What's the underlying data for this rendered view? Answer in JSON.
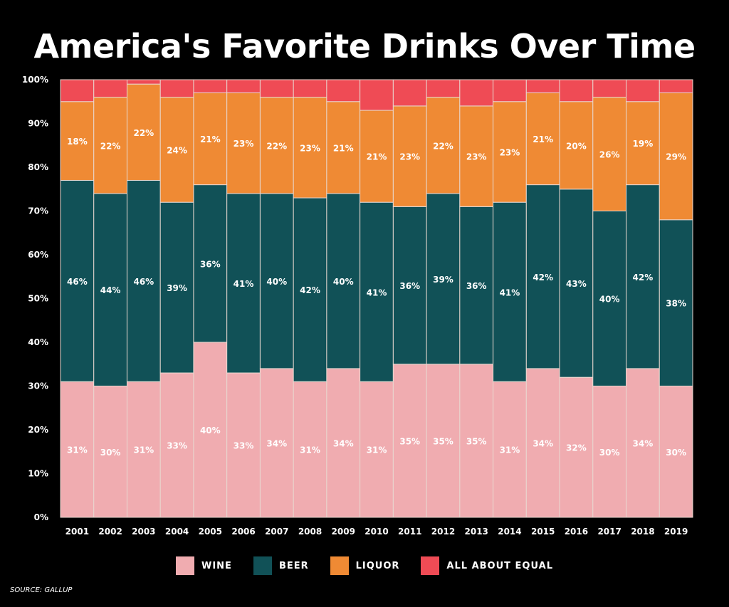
{
  "chart_data": {
    "type": "bar",
    "stacked": true,
    "title": "America's Favorite Drinks Over Time",
    "categories": [
      "2001",
      "2002",
      "2003",
      "2004",
      "2005",
      "2006",
      "2007",
      "2008",
      "2009",
      "2010",
      "2011",
      "2012",
      "2013",
      "2014",
      "2015",
      "2016",
      "2017",
      "2018",
      "2019"
    ],
    "ylim": [
      0,
      100
    ],
    "yticks": [
      "0%",
      "10%",
      "20%",
      "30%",
      "40%",
      "50%",
      "60%",
      "70%",
      "80%",
      "90%",
      "100%"
    ],
    "grid": false,
    "legend_position": "bottom",
    "series": [
      {
        "name": "WINE",
        "color": "#f0acb0",
        "values": [
          31,
          30,
          31,
          33,
          40,
          33,
          34,
          31,
          34,
          31,
          35,
          35,
          35,
          31,
          34,
          32,
          30,
          34,
          30
        ]
      },
      {
        "name": "BEER",
        "color": "#115157",
        "values": [
          46,
          44,
          46,
          39,
          36,
          41,
          40,
          42,
          40,
          41,
          36,
          39,
          36,
          41,
          42,
          43,
          40,
          42,
          38
        ]
      },
      {
        "name": "LIQUOR",
        "color": "#ef8a34",
        "values": [
          18,
          22,
          22,
          24,
          21,
          23,
          22,
          23,
          21,
          21,
          23,
          22,
          23,
          23,
          21,
          20,
          26,
          19,
          29
        ]
      },
      {
        "name": "ALL ABOUT EQUAL",
        "color": "#ef4b55",
        "values": [
          5,
          4,
          1,
          4,
          3,
          3,
          4,
          4,
          5,
          7,
          6,
          4,
          6,
          5,
          3,
          5,
          4,
          5,
          3
        ]
      }
    ],
    "label_suffix": "%",
    "labeled_series": [
      "WINE",
      "BEER",
      "LIQUOR"
    ]
  },
  "source": "SOURCE: GALLUP"
}
